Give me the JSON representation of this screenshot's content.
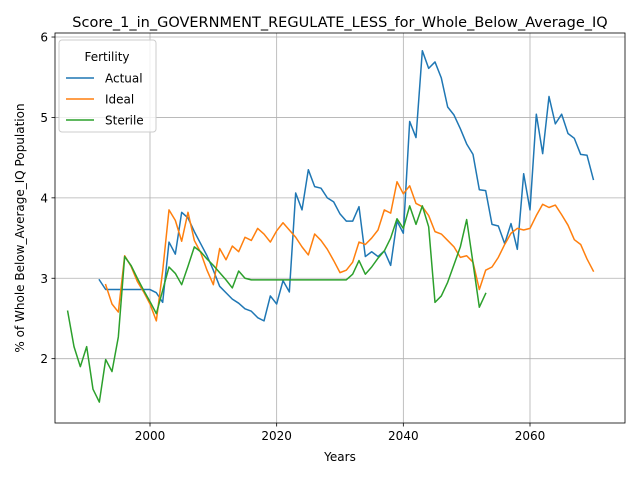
{
  "chart_data": {
    "type": "line",
    "title": "Score_1_in_GOVERNMENT_REGULATE_LESS_for_Whole_Below_Average_IQ",
    "xlabel": "Years",
    "ylabel": "% of Whole Below_Average_IQ Population",
    "xlim": [
      1985,
      2075
    ],
    "ylim": [
      1.2,
      6.05
    ],
    "x_ticks": [
      2000,
      2020,
      2040,
      2060
    ],
    "y_ticks": [
      2,
      3,
      4,
      5,
      6
    ],
    "grid": true,
    "legend": {
      "title": "Fertility",
      "placement": "top-left",
      "entries": [
        "Actual",
        "Ideal",
        "Sterile"
      ]
    },
    "colors": {
      "Actual": "#1f77b4",
      "Ideal": "#ff7f0e",
      "Sterile": "#2ca02c"
    },
    "series": [
      {
        "name": "Actual",
        "x": [
          1992,
          1993,
          1994,
          1995,
          1996,
          1997,
          1998,
          1999,
          2000,
          2001,
          2002,
          2003,
          2004,
          2005,
          2006,
          2007,
          2008,
          2009,
          2010,
          2011,
          2012,
          2013,
          2014,
          2015,
          2016,
          2017,
          2018,
          2019,
          2020,
          2021,
          2022,
          2023,
          2024,
          2025,
          2026,
          2027,
          2028,
          2029,
          2030,
          2031,
          2032,
          2033,
          2034,
          2035,
          2036,
          2037,
          2038,
          2039,
          2040,
          2041,
          2042,
          2043,
          2044,
          2045,
          2046,
          2047,
          2048,
          2049,
          2050,
          2051,
          2052,
          2053,
          2054,
          2055,
          2056,
          2057,
          2058,
          2059,
          2060,
          2061,
          2062,
          2063,
          2064,
          2065,
          2066,
          2067,
          2068,
          2069,
          2070
        ],
        "values": [
          2.98,
          2.86,
          2.86,
          2.86,
          2.86,
          2.86,
          2.86,
          2.86,
          2.86,
          2.82,
          2.7,
          3.45,
          3.3,
          3.82,
          3.75,
          3.58,
          3.43,
          3.28,
          3.1,
          2.9,
          2.82,
          2.74,
          2.69,
          2.62,
          2.59,
          2.51,
          2.47,
          2.78,
          2.68,
          2.97,
          2.83,
          4.06,
          3.85,
          4.35,
          4.14,
          4.12,
          4.0,
          3.95,
          3.8,
          3.71,
          3.71,
          3.89,
          3.27,
          3.33,
          3.27,
          3.34,
          3.16,
          3.71,
          3.56,
          4.95,
          4.75,
          5.83,
          5.61,
          5.69,
          5.49,
          5.13,
          5.03,
          4.86,
          4.67,
          4.54,
          4.1,
          4.09,
          3.67,
          3.65,
          3.43,
          3.68,
          3.36,
          4.3,
          3.85,
          5.04,
          4.55,
          5.26,
          4.92,
          5.04,
          4.8,
          4.74,
          4.54,
          4.53,
          4.23
        ]
      },
      {
        "name": "Ideal",
        "x": [
          1993,
          1994,
          1995,
          1996,
          1997,
          1998,
          1999,
          2000,
          2001,
          2002,
          2003,
          2004,
          2005,
          2006,
          2007,
          2008,
          2009,
          2010,
          2011,
          2012,
          2013,
          2014,
          2015,
          2016,
          2017,
          2018,
          2019,
          2020,
          2021,
          2022,
          2023,
          2024,
          2025,
          2026,
          2027,
          2028,
          2029,
          2030,
          2031,
          2032,
          2033,
          2034,
          2035,
          2036,
          2037,
          2038,
          2039,
          2040,
          2041,
          2042,
          2043,
          2044,
          2045,
          2046,
          2047,
          2048,
          2049,
          2050,
          2051,
          2052,
          2053,
          2054,
          2055,
          2056,
          2057,
          2058,
          2059,
          2060,
          2061,
          2062,
          2063,
          2064,
          2065,
          2066,
          2067,
          2068,
          2069,
          2070
        ],
        "values": [
          2.92,
          2.68,
          2.58,
          3.28,
          3.15,
          2.96,
          2.83,
          2.68,
          2.47,
          3.09,
          3.85,
          3.72,
          3.46,
          3.82,
          3.47,
          3.32,
          3.1,
          2.92,
          3.37,
          3.23,
          3.4,
          3.33,
          3.51,
          3.47,
          3.62,
          3.55,
          3.45,
          3.59,
          3.69,
          3.6,
          3.51,
          3.39,
          3.29,
          3.55,
          3.47,
          3.36,
          3.22,
          3.07,
          3.1,
          3.2,
          3.45,
          3.42,
          3.5,
          3.6,
          3.85,
          3.81,
          4.2,
          4.05,
          4.15,
          3.93,
          3.89,
          3.78,
          3.58,
          3.55,
          3.47,
          3.39,
          3.26,
          3.28,
          3.2,
          2.86,
          3.1,
          3.14,
          3.26,
          3.42,
          3.56,
          3.62,
          3.6,
          3.62,
          3.78,
          3.92,
          3.88,
          3.91,
          3.79,
          3.66,
          3.48,
          3.42,
          3.24,
          3.09
        ]
      },
      {
        "name": "Sterile",
        "x": [
          1987,
          1988,
          1989,
          1990,
          1991,
          1992,
          1993,
          1994,
          1995,
          1996,
          1997,
          1998,
          1999,
          2000,
          2001,
          2002,
          2003,
          2004,
          2005,
          2006,
          2007,
          2008,
          2009,
          2010,
          2011,
          2012,
          2013,
          2014,
          2015,
          2016,
          2017,
          2018,
          2019,
          2020,
          2021,
          2022,
          2023,
          2024,
          2025,
          2026,
          2027,
          2028,
          2029,
          2030,
          2031,
          2032,
          2033,
          2034,
          2035,
          2036,
          2037,
          2038,
          2039,
          2040,
          2041,
          2042,
          2043,
          2044,
          2045,
          2046,
          2047,
          2048,
          2049,
          2050,
          2051,
          2052,
          2053
        ],
        "values": [
          2.59,
          2.15,
          1.9,
          2.15,
          1.62,
          1.46,
          1.99,
          1.84,
          2.27,
          3.27,
          3.16,
          3.0,
          2.85,
          2.71,
          2.56,
          2.85,
          3.14,
          3.06,
          2.92,
          3.15,
          3.39,
          3.33,
          3.24,
          3.16,
          3.07,
          2.98,
          2.88,
          3.09,
          3.0,
          2.98,
          2.98,
          2.98,
          2.98,
          2.98,
          2.98,
          2.98,
          2.98,
          2.98,
          2.98,
          2.98,
          2.98,
          2.98,
          2.98,
          2.98,
          2.98,
          3.05,
          3.22,
          3.05,
          3.14,
          3.25,
          3.34,
          3.5,
          3.74,
          3.62,
          3.9,
          3.67,
          3.9,
          3.64,
          2.7,
          2.78,
          2.95,
          3.17,
          3.39,
          3.73,
          3.19,
          2.64,
          2.81
        ]
      }
    ]
  }
}
